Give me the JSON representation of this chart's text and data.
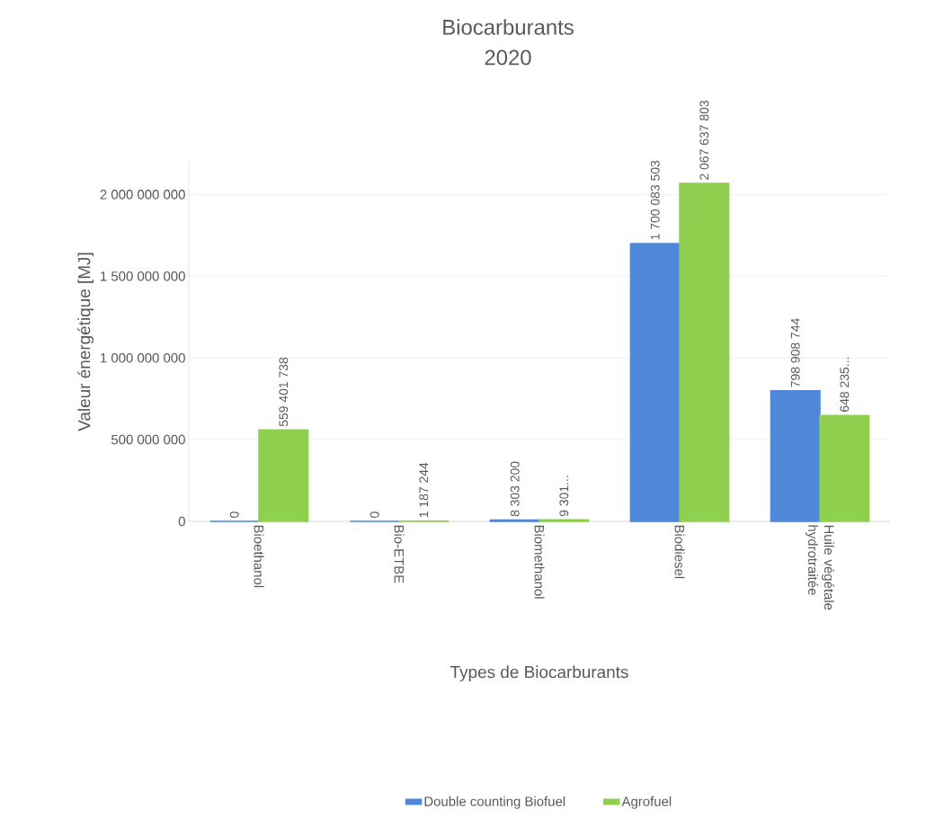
{
  "chart_data": {
    "type": "bar",
    "title": "Biocarburants",
    "subtitle": "2020",
    "xlabel": "Types de Biocarburants",
    "ylabel": "Valeur énergétique [MJ]",
    "categories": [
      "Bioethanol",
      "Bio-ETBE",
      "Biomethanol",
      "Biodiesel",
      "Huile végétale hydrotraitée"
    ],
    "series": [
      {
        "name": "Double counting Biofuel",
        "color": "#4f88d8",
        "values": [
          0,
          0,
          8303200,
          1700083503,
          798908744
        ],
        "value_labels": [
          "0",
          "0",
          "8 303 200",
          "1 700 083 503",
          "798 908 744"
        ]
      },
      {
        "name": "Agrofuel",
        "color": "#8fd14f",
        "values": [
          559401738,
          1187244,
          9301000,
          2067637803,
          648235000
        ],
        "value_labels": [
          "559 401 738",
          "1 187 244",
          "9 301...",
          "2 067 637 803",
          "648 235..."
        ]
      }
    ],
    "ylim": [
      0,
      2200000000
    ],
    "yticks": [
      {
        "value": 0,
        "label": "0"
      },
      {
        "value": 500000000,
        "label": "500 000 000"
      },
      {
        "value": 1000000000,
        "label": "1 000 000 000"
      },
      {
        "value": 1500000000,
        "label": "1 500 000 000"
      },
      {
        "value": 2000000000,
        "label": "2 000 000 000"
      }
    ],
    "grid": "y",
    "legend": "bottom"
  }
}
